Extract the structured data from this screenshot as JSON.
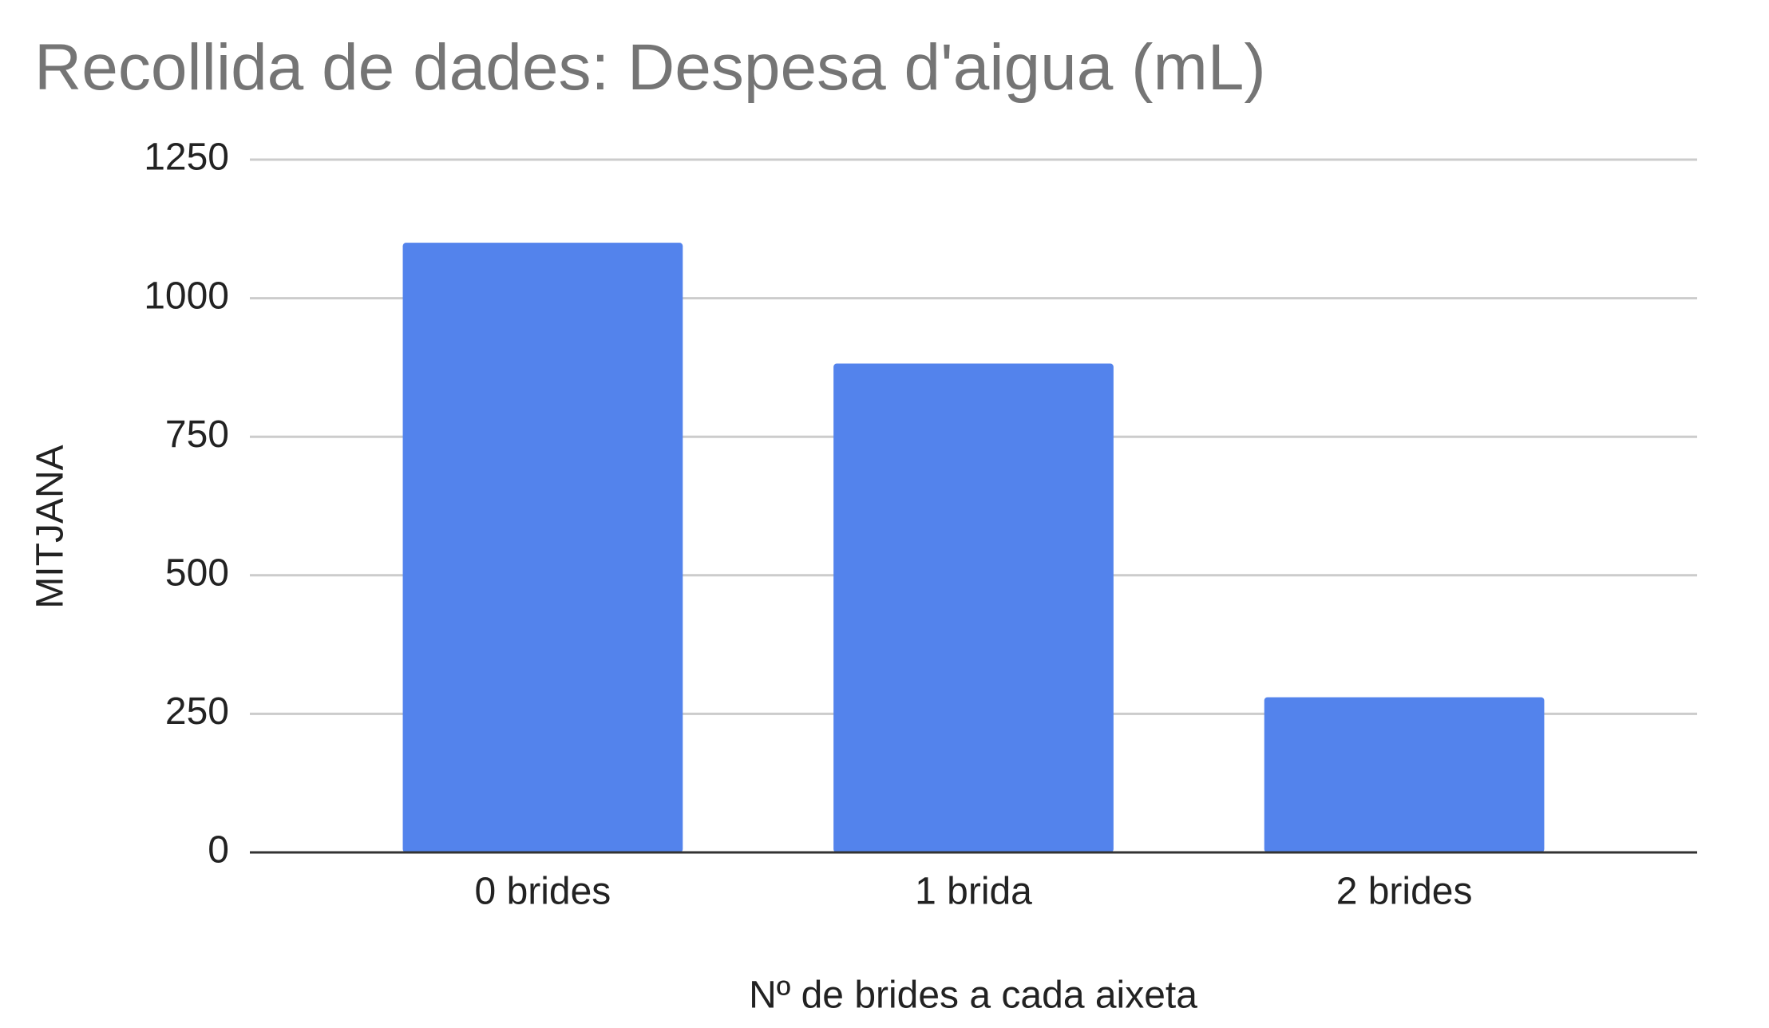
{
  "chart_data": {
    "type": "bar",
    "title": "Recollida de dades: Despesa d'aigua (mL)",
    "x_label": "Nº de brides a cada aixeta",
    "y_label": "MITJANA",
    "categories": [
      "0 brides",
      "1 brida",
      "2 brides"
    ],
    "values": [
      1100,
      882,
      280
    ],
    "color": "#5383ec",
    "ylim": [
      0,
      1250
    ],
    "yticks": [
      0,
      250,
      500,
      750,
      1000,
      1250
    ],
    "grid": true
  }
}
